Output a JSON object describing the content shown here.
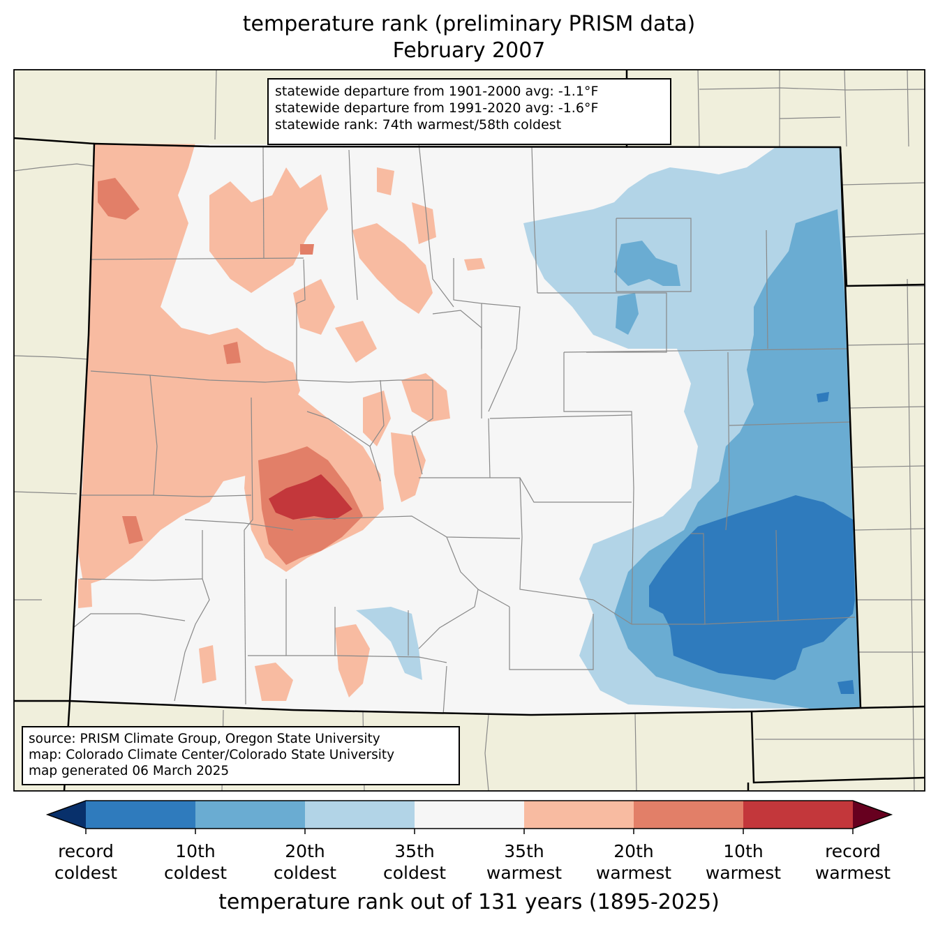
{
  "title": {
    "line1": "temperature rank (preliminary PRISM data)",
    "line2": "February 2007"
  },
  "stats_box": {
    "line1": "statewide departure from 1901-2000 avg: -1.1°F",
    "line2": "statewide departure from 1991-2020 avg: -1.6°F",
    "line3": "statewide rank: 74th warmest/58th coldest"
  },
  "source_box": {
    "line1": "source: PRISM Climate Group, Oregon State University",
    "line2": "map: Colorado Climate Center/Colorado State University",
    "line3": "map generated 06 March 2025"
  },
  "colorbar": {
    "title": "temperature rank out of 131 years (1895-2025)",
    "under_color": "#08306b",
    "over_color": "#67001f",
    "bins": [
      {
        "from": "record coldest",
        "to": "10th coldest",
        "color": "#2f7bbd"
      },
      {
        "from": "10th coldest",
        "to": "20th coldest",
        "color": "#6aacd2"
      },
      {
        "from": "20th coldest",
        "to": "35th coldest",
        "color": "#b2d4e7"
      },
      {
        "from": "35th coldest",
        "to": "35th warmest",
        "color": "#f6f6f6"
      },
      {
        "from": "35th warmest",
        "to": "20th warmest",
        "color": "#f8bba1"
      },
      {
        "from": "20th warmest",
        "to": "10th warmest",
        "color": "#e27f68"
      },
      {
        "from": "10th warmest",
        "to": "record warmest",
        "color": "#c3373b"
      }
    ],
    "ticks": [
      {
        "line1": "record",
        "line2": "coldest"
      },
      {
        "line1": "10th",
        "line2": "coldest"
      },
      {
        "line1": "20th",
        "line2": "coldest"
      },
      {
        "line1": "35th",
        "line2": "coldest"
      },
      {
        "line1": "35th",
        "line2": "warmest"
      },
      {
        "line1": "20th",
        "line2": "warmest"
      },
      {
        "line1": "10th",
        "line2": "warmest"
      },
      {
        "line1": "record",
        "line2": "warmest"
      }
    ]
  },
  "map": {
    "land_color": "#f0efdc",
    "neutral_color": "#f6f6f6",
    "county_line_color": "#888888"
  }
}
